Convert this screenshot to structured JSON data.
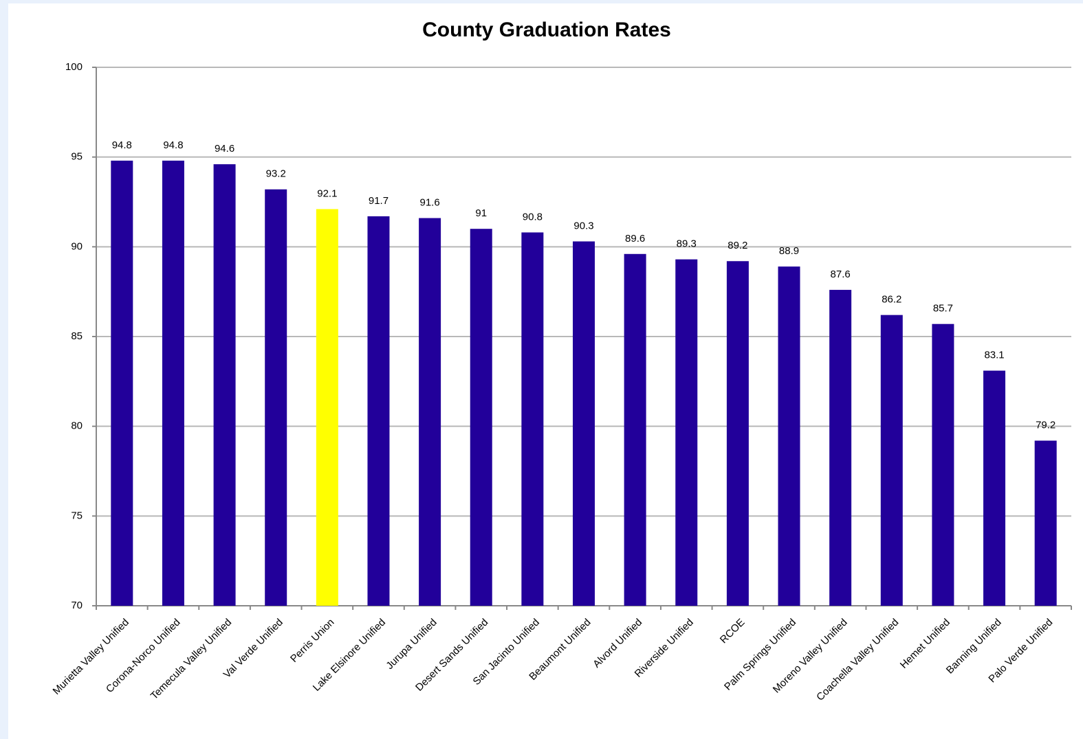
{
  "chart_data": {
    "type": "bar",
    "title": "County Graduation Rates",
    "categories": [
      "Murietta Valley Unified",
      "Corona-Norco Unified",
      "Temecula Valley Unified",
      "Val Verde Unified",
      "Perris Union",
      "Lake Elsinore Unified",
      "Jurupa Unified",
      "Desert Sands Unified",
      "San Jacinto Unified",
      "Beaumont Unified",
      "Alvord Unified",
      "Riverside Unified",
      "RCOE",
      "Palm Springs Unified",
      "Moreno Valley Unified",
      "Coachella Valley Unified",
      "Hemet Unified",
      "Banning Unified",
      "Palo Verde Unified"
    ],
    "values": [
      94.8,
      94.8,
      94.6,
      93.2,
      92.1,
      91.7,
      91.6,
      91,
      90.8,
      90.3,
      89.6,
      89.3,
      89.2,
      88.9,
      87.6,
      86.2,
      85.7,
      83.1,
      79.2
    ],
    "colors": [
      "#22009a",
      "#22009a",
      "#22009a",
      "#22009a",
      "#ffff00",
      "#22009a",
      "#22009a",
      "#22009a",
      "#22009a",
      "#22009a",
      "#22009a",
      "#22009a",
      "#22009a",
      "#22009a",
      "#22009a",
      "#22009a",
      "#22009a",
      "#22009a",
      "#22009a"
    ],
    "ylim": [
      70,
      100
    ],
    "yticks": [
      70,
      75,
      80,
      85,
      90,
      95,
      100
    ],
    "grid": true
  }
}
